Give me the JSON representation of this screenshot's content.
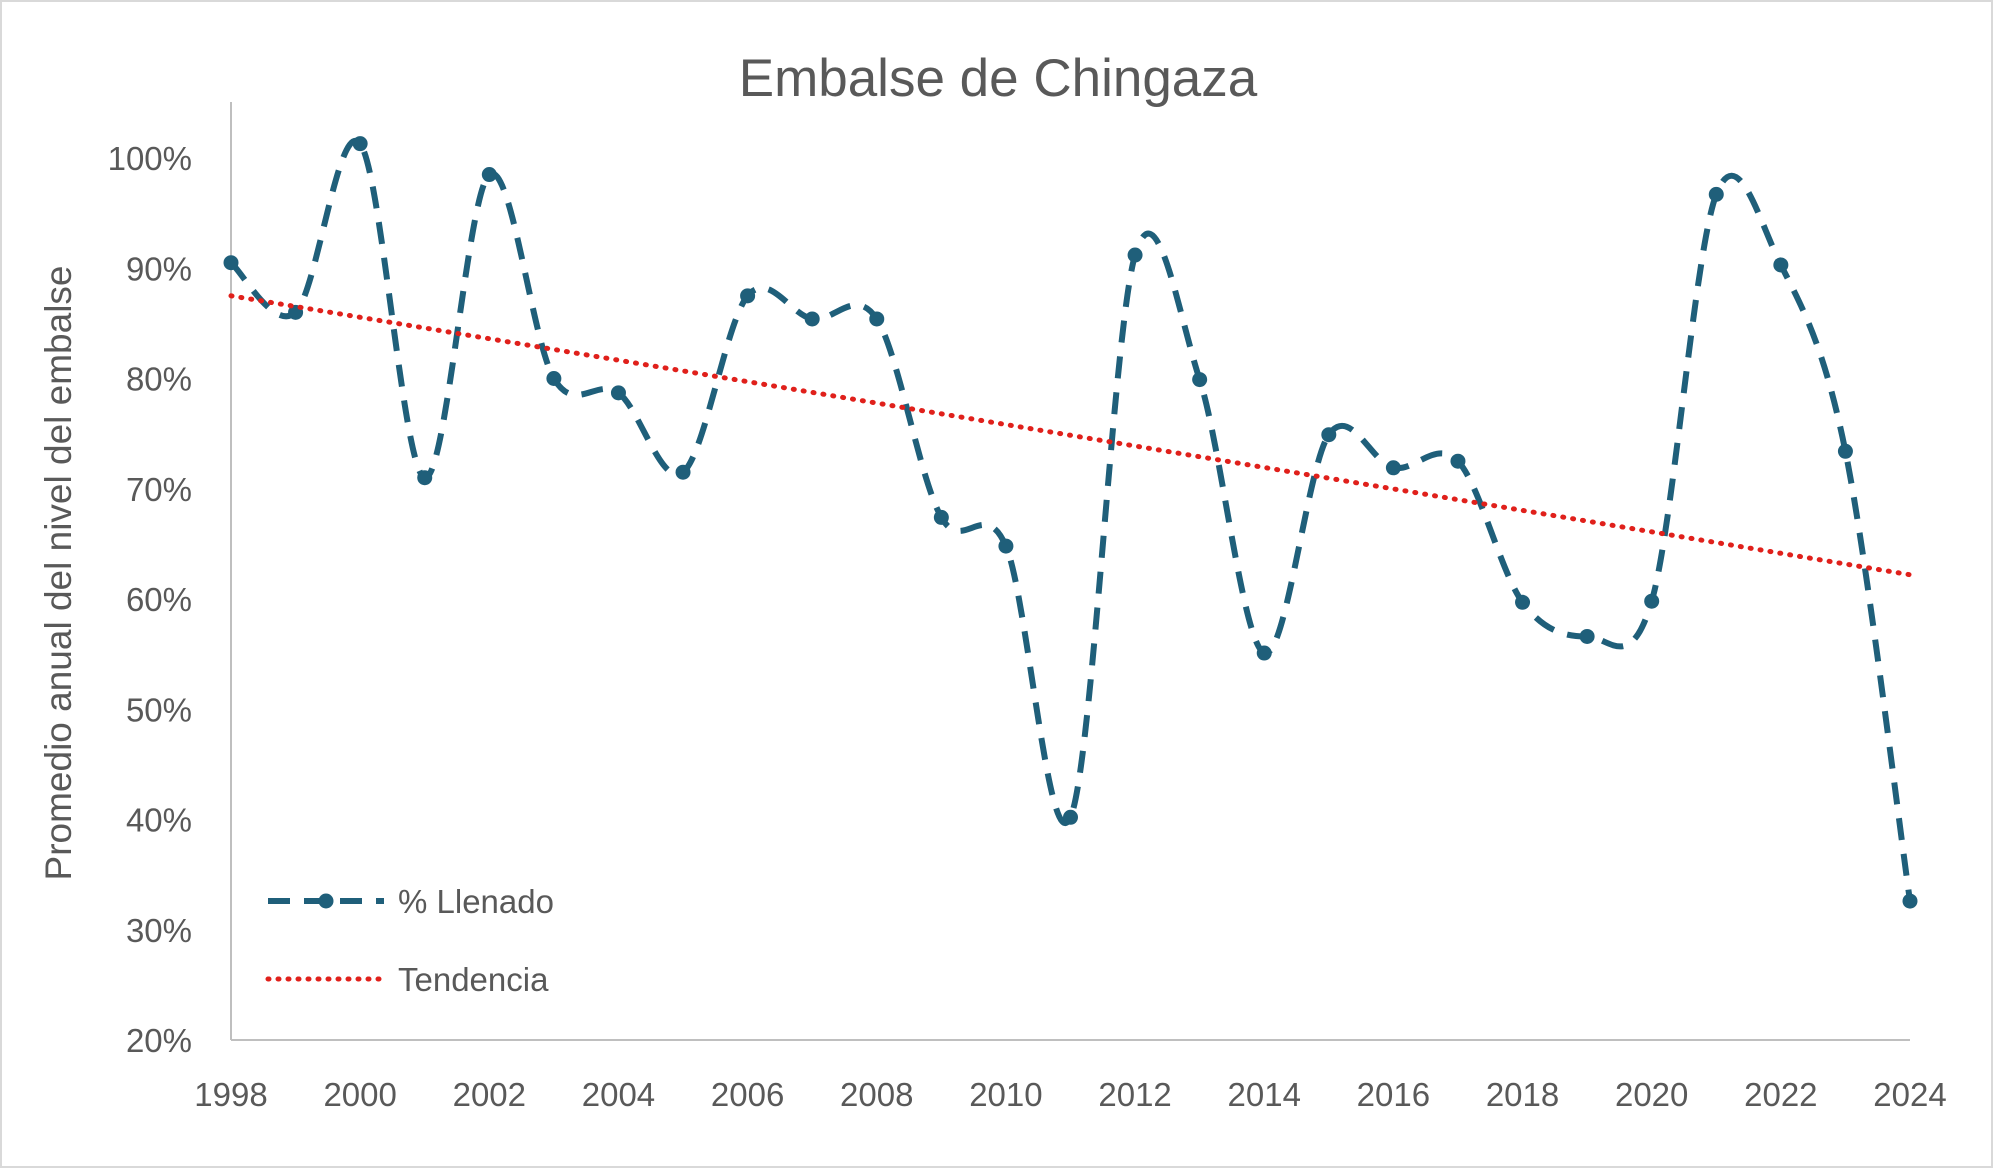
{
  "chart_data": {
    "type": "line",
    "title": "Embalse de Chingaza",
    "xlabel": "",
    "ylabel": "Promedio anual del nivel del embalse",
    "x": [
      1998,
      1999,
      2000,
      2001,
      2002,
      2003,
      2004,
      2005,
      2006,
      2007,
      2008,
      2009,
      2010,
      2011,
      2012,
      2013,
      2014,
      2015,
      2016,
      2017,
      2018,
      2019,
      2020,
      2021,
      2022,
      2023,
      2024
    ],
    "xlim": [
      1998,
      2024
    ],
    "ylim": [
      0.2,
      1.0
    ],
    "x_ticks": [
      "1998",
      "2000",
      "2002",
      "2004",
      "2006",
      "2008",
      "2010",
      "2012",
      "2014",
      "2016",
      "2018",
      "2020",
      "2022",
      "2024"
    ],
    "y_ticks": [
      "20%",
      "30%",
      "40%",
      "50%",
      "60%",
      "70%",
      "80%",
      "90%",
      "100%"
    ],
    "series": [
      {
        "name": "% Llenado",
        "style": "dashed-smooth-with-markers",
        "color": "#1f5f7a",
        "values": [
          0.905,
          0.86,
          1.013,
          0.71,
          0.985,
          0.8,
          0.787,
          0.715,
          0.875,
          0.854,
          0.854,
          0.674,
          0.648,
          0.402,
          0.912,
          0.799,
          0.551,
          0.749,
          0.719,
          0.725,
          0.597,
          0.566,
          0.598,
          0.967,
          0.903,
          0.734,
          0.326
        ]
      },
      {
        "name": "Tendencia",
        "style": "dotted-linear",
        "color": "#e0201b",
        "values": [
          0.875,
          0.622
        ],
        "x": [
          1998,
          2024
        ]
      }
    ],
    "grid": false,
    "legend_position": "bottom-left"
  }
}
